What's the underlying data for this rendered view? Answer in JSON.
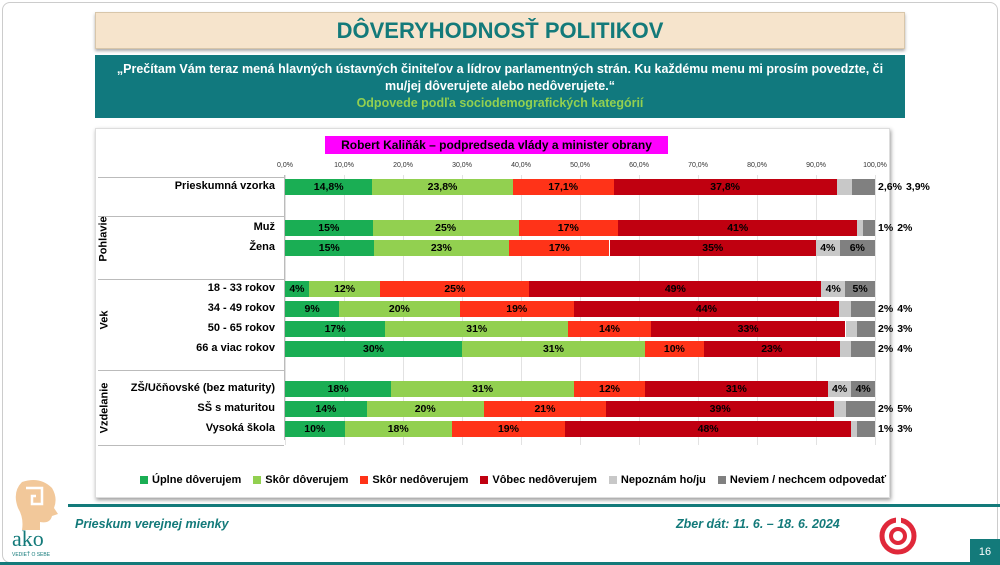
{
  "title": "DÔVERYHODNOSŤ POLITIKOV",
  "question": "„Prečítam Vám teraz mená hlavných ústavných činiteľov a lídrov parlamentných strán. Ku každému menu mi prosím povedzte, či mu/jej dôverujete alebo nedôverujete.“",
  "subtitle": "Odpovede podľa sociodemografických kategórií",
  "footer": {
    "left": "Prieskum verejnej mienky",
    "right": "Zber dát: 11. 6. – 18. 6. 2024",
    "page": "16",
    "logo_text": "ako",
    "logo_tagline": "VEDIEŤ O SEBE"
  },
  "chart_data": {
    "type": "bar",
    "orientation": "horizontal-stacked-100",
    "title": "Robert Kaliňák – podpredseda vlády a minister obrany",
    "xlim": [
      0,
      100
    ],
    "x_ticks": [
      "0,0%",
      "10,0%",
      "20,0%",
      "30,0%",
      "40,0%",
      "50,0%",
      "60,0%",
      "70,0%",
      "80,0%",
      "90,0%",
      "100,0%"
    ],
    "grid": true,
    "legend_position": "bottom",
    "series": [
      {
        "name": "Úplne dôverujem",
        "color": "#1aae54"
      },
      {
        "name": "Skôr dôverujem",
        "color": "#92d050"
      },
      {
        "name": "Skôr nedôverujem",
        "color": "#ff3318"
      },
      {
        "name": "Vôbec nedôverujem",
        "color": "#c00010"
      },
      {
        "name": "Nepoznám ho/ju",
        "color": "#c8c8c8"
      },
      {
        "name": "Neviem / nechcem odpovedať",
        "color": "#808080"
      }
    ],
    "groups": [
      {
        "name": "",
        "rows": [
          {
            "label": "Prieskumná vzorka",
            "values": [
              14.8,
              23.8,
              17.1,
              37.8,
              2.6,
              3.9
            ],
            "labels": [
              "14,8%",
              "23,8%",
              "17,1%",
              "37,8%",
              "2,6%",
              "3,9%"
            ]
          }
        ]
      },
      {
        "name": "Pohlavie",
        "rows": [
          {
            "label": "Muž",
            "values": [
              15,
              25,
              17,
              41,
              1,
              2
            ],
            "labels": [
              "15%",
              "25%",
              "17%",
              "41%",
              "1%",
              "2%"
            ]
          },
          {
            "label": "Žena",
            "values": [
              15,
              23,
              17,
              35,
              4,
              6
            ],
            "labels": [
              "15%",
              "23%",
              "17%",
              "35%",
              "4%",
              "6%"
            ]
          }
        ]
      },
      {
        "name": "Vek",
        "rows": [
          {
            "label": "18 - 33 rokov",
            "values": [
              4,
              12,
              25,
              49,
              4,
              5
            ],
            "labels": [
              "4%",
              "12%",
              "25%",
              "49%",
              "4%",
              "5%"
            ]
          },
          {
            "label": "34 - 49 rokov",
            "values": [
              9,
              20,
              19,
              44,
              2,
              4
            ],
            "labels": [
              "9%",
              "20%",
              "19%",
              "44%",
              "2%",
              "4%"
            ]
          },
          {
            "label": "50 - 65 rokov",
            "values": [
              17,
              31,
              14,
              33,
              2,
              3
            ],
            "labels": [
              "17%",
              "31%",
              "14%",
              "33%",
              "2%",
              "3%"
            ]
          },
          {
            "label": "66 a viac rokov",
            "values": [
              30,
              31,
              10,
              23,
              2,
              4
            ],
            "labels": [
              "30%",
              "31%",
              "10%",
              "23%",
              "2%",
              "4%"
            ]
          }
        ]
      },
      {
        "name": "Vzdelanie",
        "rows": [
          {
            "label": "ZŠ/Učňovské (bez maturity)",
            "values": [
              18,
              31,
              12,
              31,
              4,
              4
            ],
            "labels": [
              "18%",
              "31%",
              "12%",
              "31%",
              "4%",
              "4%"
            ]
          },
          {
            "label": "SŠ s maturitou",
            "values": [
              14,
              20,
              21,
              39,
              2,
              5
            ],
            "labels": [
              "14%",
              "20%",
              "21%",
              "39%",
              "2%",
              "5%"
            ]
          },
          {
            "label": "Vysoká škola",
            "values": [
              10,
              18,
              19,
              48,
              1,
              3
            ],
            "labels": [
              "10%",
              "18%",
              "19%",
              "48%",
              "1%",
              "3%"
            ]
          }
        ]
      }
    ]
  }
}
